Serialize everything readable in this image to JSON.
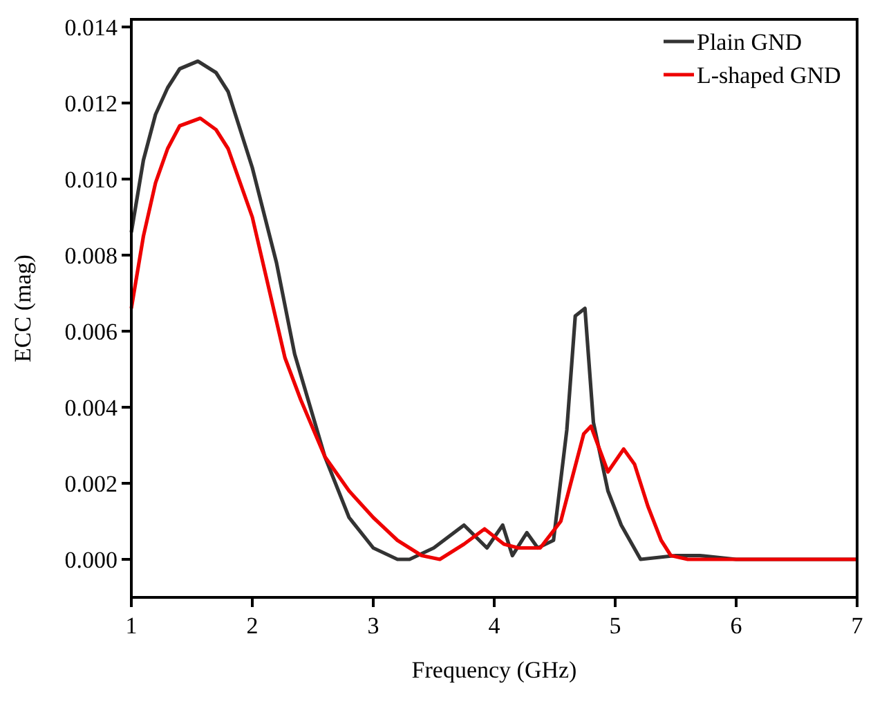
{
  "chart_data": {
    "type": "line",
    "xlabel": "Frequency (GHz)",
    "ylabel": "ECC (mag)",
    "xlim": [
      1,
      7
    ],
    "xticks": [
      1,
      2,
      3,
      4,
      5,
      6,
      7
    ],
    "ylim": [
      -0.001,
      0.0142
    ],
    "yticks": [
      {
        "value": 0,
        "label": "0.000"
      },
      {
        "value": 0.002,
        "label": "0.002"
      },
      {
        "value": 0.004,
        "label": "0.004"
      },
      {
        "value": 0.006,
        "label": "0.006"
      },
      {
        "value": 0.008,
        "label": "0.008"
      },
      {
        "value": 0.01,
        "label": "0.010"
      },
      {
        "value": 0.012,
        "label": "0.012"
      },
      {
        "value": 0.014,
        "label": "0.014"
      }
    ],
    "grid": false,
    "legend": "top right",
    "marker": "none",
    "line_style": "solid",
    "series": [
      {
        "name": "Plain GND",
        "color": "#333333",
        "x": [
          1,
          1.1,
          1.2,
          1.3,
          1.4,
          1.55,
          1.7,
          1.8,
          2,
          2.2,
          2.35,
          2.6,
          2.8,
          3,
          3.2,
          3.3,
          3.5,
          3.75,
          3.94,
          4.07,
          4.15,
          4.27,
          4.36,
          4.49,
          4.6,
          4.67,
          4.75,
          4.82,
          4.94,
          5.05,
          5.21,
          5.5,
          5.7,
          6,
          7
        ],
        "values": [
          0.0086,
          0.0105,
          0.0117,
          0.0124,
          0.0129,
          0.0131,
          0.0128,
          0.0123,
          0.0103,
          0.0078,
          0.0054,
          0.0027,
          0.0011,
          0.0003,
          0,
          0,
          0.0003,
          0.0009,
          0.0003,
          0.0009,
          0.0001,
          0.0007,
          0.0003,
          0.0005,
          0.0034,
          0.0064,
          0.0066,
          0.0036,
          0.0018,
          0.0009,
          0,
          0.0001,
          0.0001,
          0,
          0
        ]
      },
      {
        "name": "L-shaped GND",
        "color": "#ee0000",
        "x": [
          1,
          1.1,
          1.2,
          1.3,
          1.4,
          1.57,
          1.7,
          1.8,
          2,
          2.27,
          2.4,
          2.6,
          2.8,
          3,
          3.2,
          3.4,
          3.55,
          3.75,
          3.92,
          4.08,
          4.2,
          4.38,
          4.55,
          4.74,
          4.8,
          4.94,
          5.07,
          5.16,
          5.27,
          5.38,
          5.46,
          5.6,
          6,
          7
        ],
        "values": [
          0.0066,
          0.0085,
          0.0099,
          0.0108,
          0.0114,
          0.0116,
          0.0113,
          0.0108,
          0.009,
          0.0053,
          0.0042,
          0.0027,
          0.0018,
          0.0011,
          0.0005,
          0.0001,
          0,
          0.0004,
          0.0008,
          0.0004,
          0.0003,
          0.0003,
          0.001,
          0.0033,
          0.0035,
          0.0023,
          0.0029,
          0.0025,
          0.0014,
          0.0005,
          0.0001,
          0,
          0,
          0
        ]
      }
    ]
  }
}
